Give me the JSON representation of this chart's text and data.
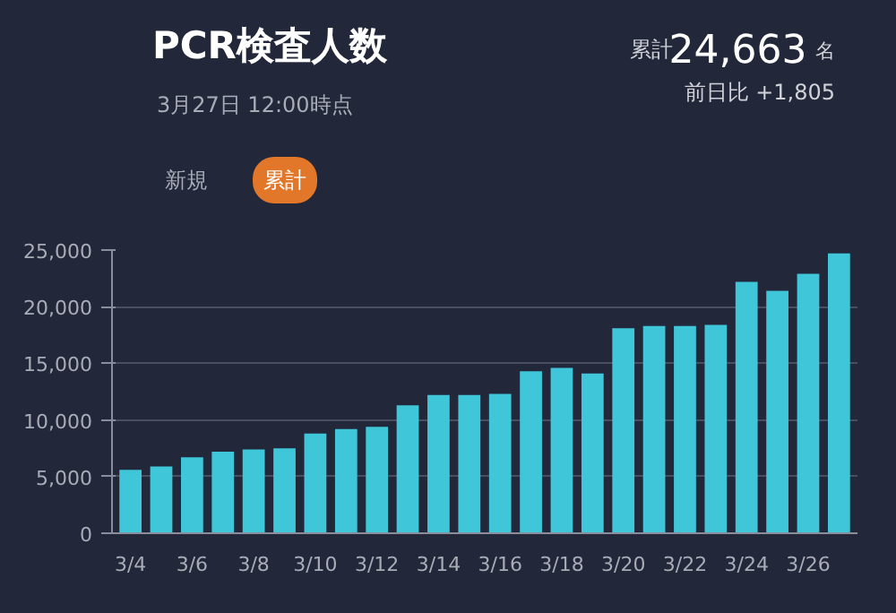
{
  "chart_data": {
    "type": "bar",
    "title": "PCR検査人数",
    "subtitle": "3月27日 12:00時点",
    "annotations": [
      "累計",
      "24,663",
      "名",
      "前日比 +1,805",
      "新規",
      "累計"
    ],
    "categories": [
      "3/4",
      null,
      "3/6",
      null,
      "3/8",
      null,
      "3/10",
      null,
      "3/12",
      null,
      "3/14",
      null,
      "3/16",
      null,
      "3/18",
      null,
      "3/20",
      null,
      "3/22",
      null,
      "3/24",
      null,
      "3/26",
      null
    ],
    "values": [
      5600,
      5900,
      6700,
      7200,
      7400,
      7500,
      8800,
      9200,
      9400,
      11300,
      12200,
      12200,
      12300,
      14300,
      14600,
      14100,
      18100,
      18300,
      18300,
      18400,
      22200,
      21400,
      22900,
      24700
    ],
    "color": "#3fc6d9",
    "ylim": [
      0,
      25000
    ],
    "yticks": [
      {
        "value": 0,
        "label": "0"
      },
      {
        "value": 5000,
        "label": "5,000"
      },
      {
        "value": 10000,
        "label": "10,000"
      },
      {
        "value": 15000,
        "label": "15,000"
      },
      {
        "value": 20000,
        "label": "20,000"
      },
      {
        "value": 25000,
        "label": "25,000"
      }
    ],
    "grid": "y"
  }
}
